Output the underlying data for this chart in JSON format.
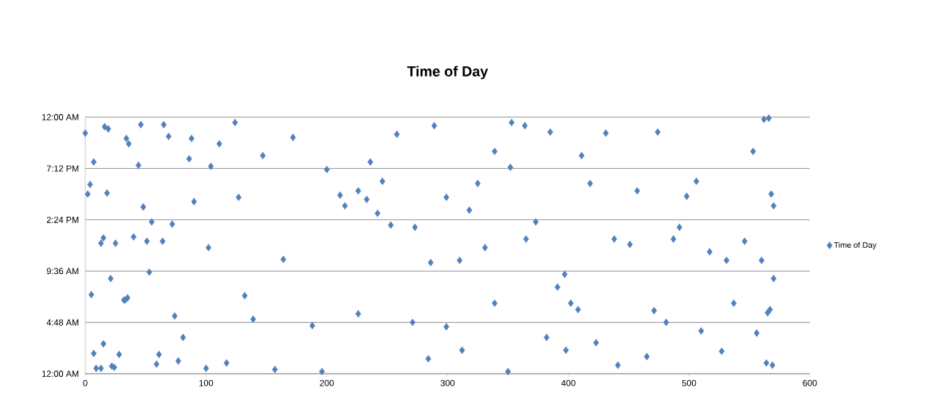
{
  "chart_data": {
    "type": "scatter",
    "title": "Time of Day",
    "series": [
      {
        "name": "Time of Day",
        "color": "#4f81bd",
        "x": [
          0,
          2,
          4,
          5,
          7,
          7,
          9,
          13,
          15,
          13,
          15,
          16,
          19,
          18,
          21,
          22,
          24,
          25,
          28,
          32,
          33,
          35,
          34,
          36,
          40,
          44,
          46,
          48,
          51,
          53,
          55,
          59,
          61,
          64,
          65,
          69,
          72,
          74,
          77,
          81,
          86,
          88,
          90,
          100,
          102,
          104,
          111,
          117,
          124,
          127,
          132,
          139,
          147,
          157,
          164,
          172,
          188,
          196,
          200,
          211,
          215,
          226,
          226,
          233,
          236,
          242,
          246,
          253,
          258,
          271,
          273,
          284,
          286,
          289,
          299,
          299,
          310,
          312,
          318,
          325,
          331,
          339,
          339,
          350,
          352,
          353,
          364,
          365,
          373,
          382,
          385,
          391,
          397,
          398,
          402,
          408,
          411,
          418,
          423,
          431,
          438,
          441,
          451,
          457,
          465,
          471,
          474,
          481,
          487,
          492,
          498,
          506,
          510,
          517,
          527,
          531,
          537,
          546,
          553,
          556,
          565,
          566,
          570,
          568,
          570,
          569,
          567,
          564,
          562,
          560
        ],
        "values": [
          22.5,
          16.8,
          17.7,
          7.4,
          19.8,
          1.9,
          0.5,
          0.5,
          2.8,
          12.2,
          12.7,
          23.1,
          22.9,
          16.9,
          8.9,
          0.7,
          0.6,
          12.2,
          1.8,
          6.9,
          6.9,
          7.1,
          22.0,
          21.5,
          12.8,
          19.5,
          23.3,
          15.6,
          12.4,
          9.5,
          14.2,
          0.9,
          1.8,
          12.4,
          23.3,
          22.2,
          14.0,
          5.4,
          1.2,
          3.4,
          20.1,
          22.0,
          16.1,
          0.5,
          11.8,
          19.4,
          21.5,
          1.0,
          23.5,
          16.5,
          7.3,
          5.1,
          20.4,
          0.4,
          10.7,
          22.1,
          4.5,
          0.2,
          19.1,
          16.7,
          15.7,
          5.6,
          17.1,
          16.3,
          19.8,
          15.0,
          18.0,
          13.9,
          22.4,
          4.8,
          13.7,
          1.4,
          10.4,
          23.2,
          16.5,
          4.4,
          10.6,
          2.2,
          15.3,
          17.8,
          11.8,
          6.6,
          20.8,
          0.2,
          19.3,
          23.5,
          23.2,
          12.6,
          14.2,
          3.4,
          22.6,
          8.1,
          9.3,
          2.2,
          6.6,
          6.0,
          20.4,
          17.8,
          2.9,
          22.5,
          12.6,
          0.8,
          12.1,
          17.1,
          1.6,
          5.9,
          22.6,
          4.8,
          12.6,
          13.7,
          16.6,
          18.0,
          4.0,
          11.4,
          2.1,
          10.6,
          6.6,
          12.4,
          20.8,
          3.8,
          5.7,
          23.9,
          8.9,
          16.8,
          15.7,
          0.8,
          6.0,
          1.0,
          23.8,
          10.6
        ]
      }
    ],
    "xlim": [
      0,
      600
    ],
    "xticks": [
      0,
      100,
      200,
      300,
      400,
      500,
      600
    ],
    "ylim": [
      0,
      24
    ],
    "yticks": [
      {
        "value": 0,
        "label": "12:00 AM"
      },
      {
        "value": 4.8,
        "label": "4:48 AM"
      },
      {
        "value": 9.6,
        "label": "9:36 AM"
      },
      {
        "value": 14.4,
        "label": "2:24 PM"
      },
      {
        "value": 19.2,
        "label": "7:12 PM"
      },
      {
        "value": 24,
        "label": "12:00 AM"
      }
    ],
    "grid": "y",
    "legend": "right",
    "marker": "diamond"
  }
}
